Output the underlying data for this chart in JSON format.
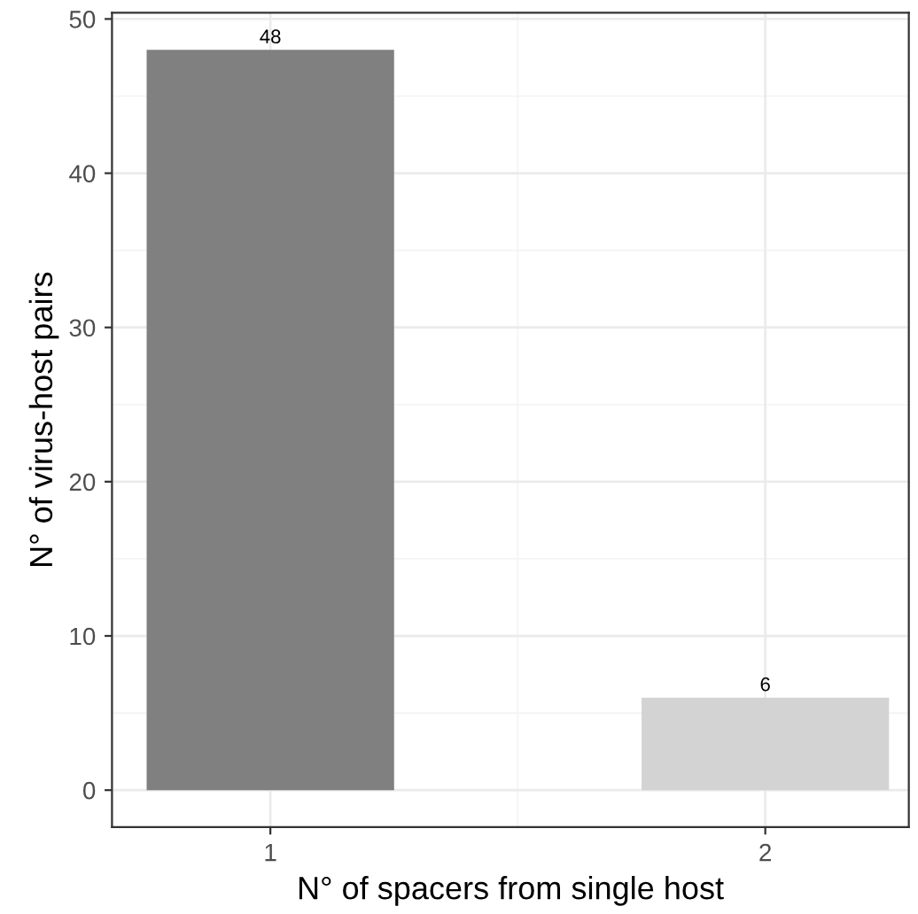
{
  "chart_data": {
    "type": "bar",
    "xlabel": "N° of spacers from single host",
    "ylabel": "N° of virus-host pairs",
    "categories": [
      "1",
      "2"
    ],
    "values": [
      48,
      6
    ],
    "colors": [
      "#808080",
      "#d3d3d3"
    ],
    "ylim": [
      -2.4,
      50.4
    ],
    "yticks": [
      0,
      10,
      20,
      30,
      40,
      50
    ],
    "data_labels": true,
    "grid": true
  }
}
